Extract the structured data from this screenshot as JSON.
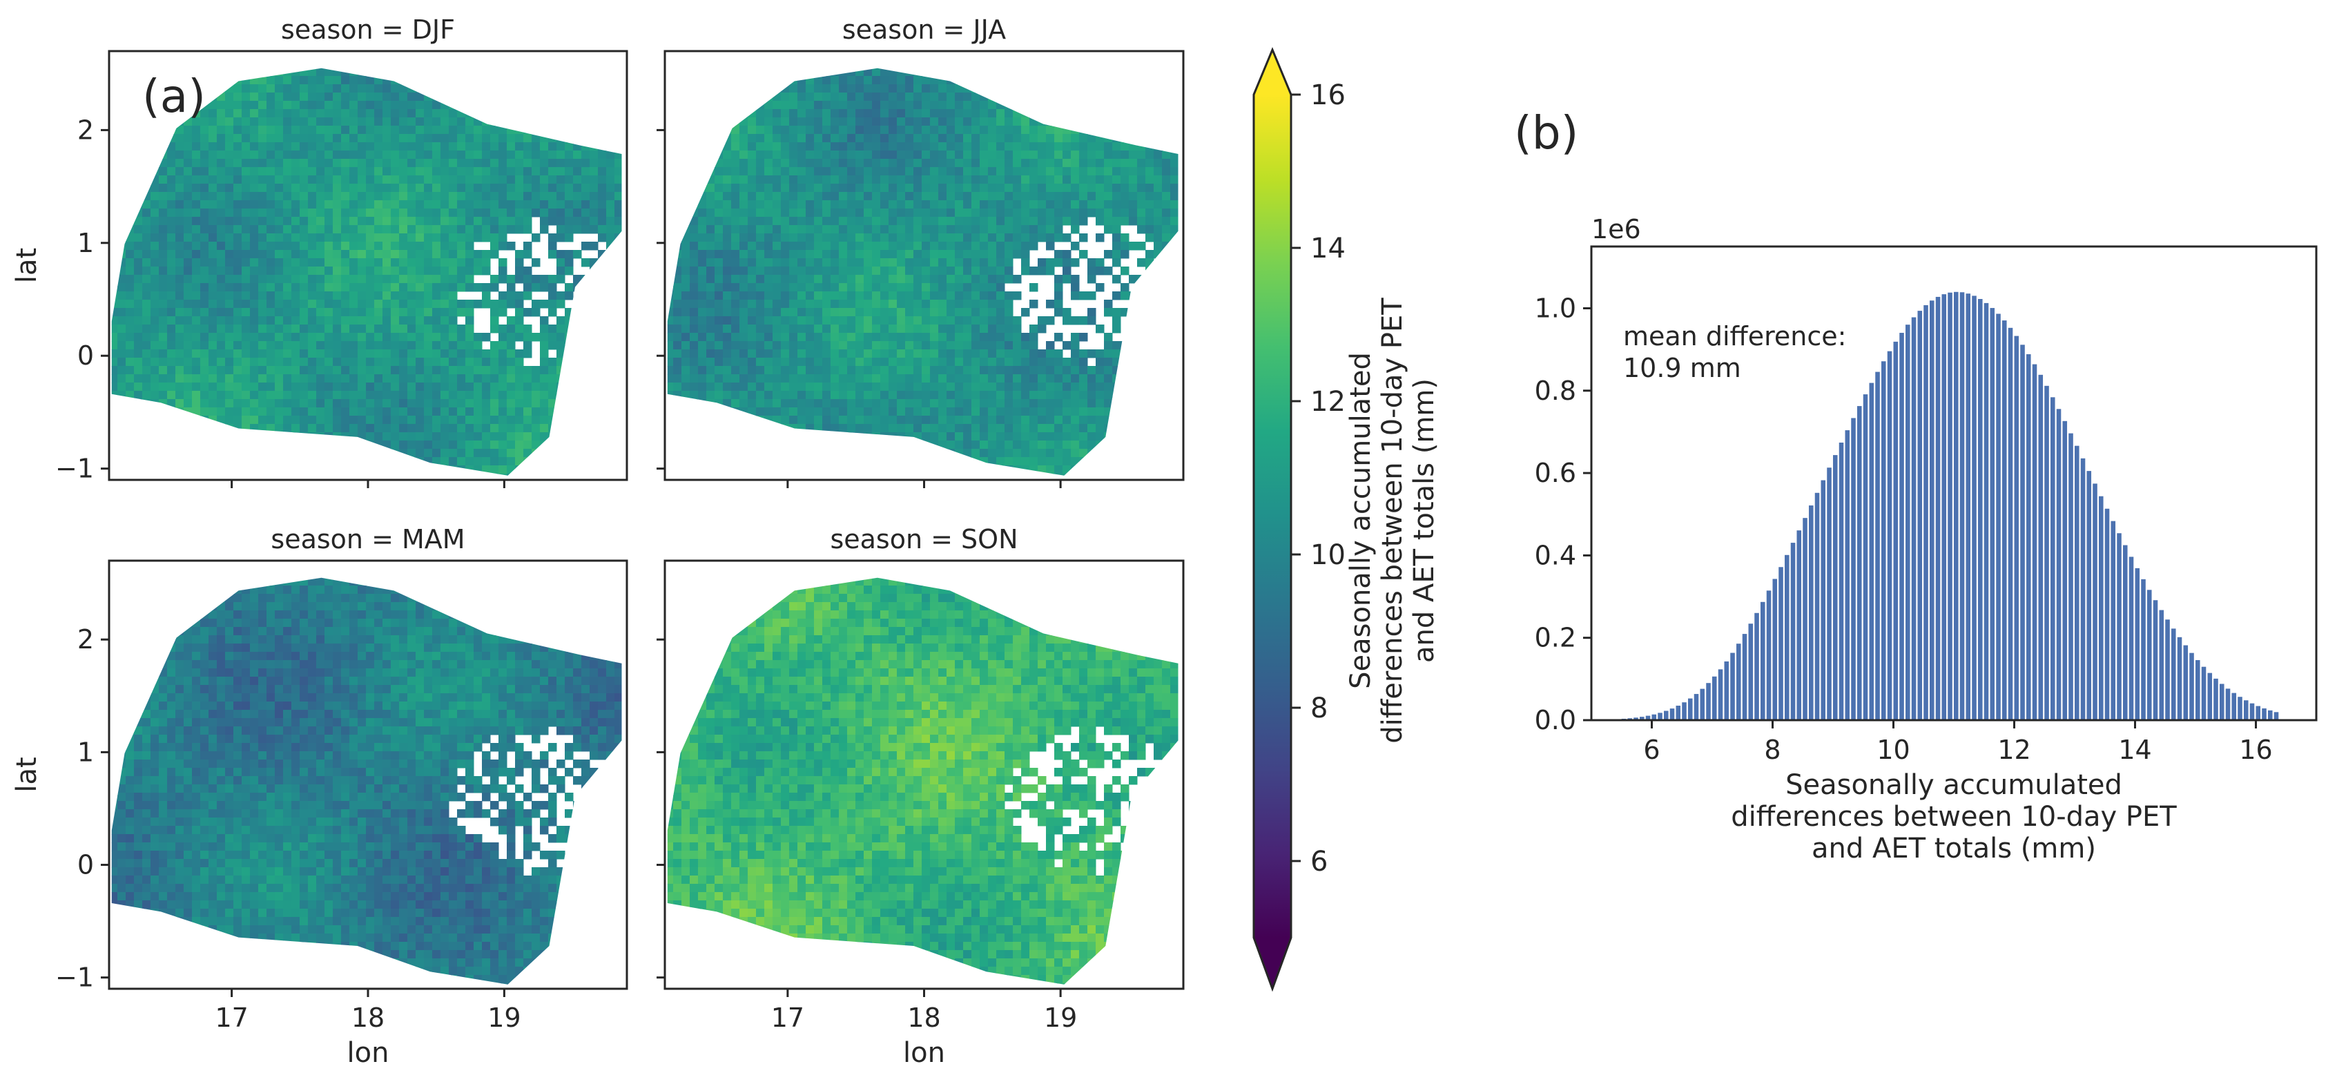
{
  "figure": {
    "panel_a_label": "(a)",
    "panel_b_label": "(b)"
  },
  "chart_data": [
    {
      "type": "heatmap",
      "panel": "a",
      "description_type": "faceted map (4 seasons)",
      "facets": [
        {
          "title": "season = DJF",
          "mean": 10.9
        },
        {
          "title": "season = JJA",
          "mean": 10.6
        },
        {
          "title": "season = MAM",
          "mean": 9.7
        },
        {
          "title": "season = SON",
          "mean": 12.4
        }
      ],
      "xlabel": "lon",
      "ylabel": "lat",
      "xlim": [
        16.1,
        19.9
      ],
      "ylim": [
        -1.1,
        2.7
      ],
      "xticks": [
        17,
        18,
        19
      ],
      "xtick_labels": [
        "17",
        "18",
        "19"
      ],
      "yticks": [
        -1,
        0,
        1,
        2
      ],
      "ytick_labels": [
        "−1",
        "0",
        "1",
        "2"
      ],
      "colorbar": {
        "label_lines": [
          "Seasonally accumulated",
          "differences between 10-day PET",
          "and AET totals (mm)"
        ],
        "vmin": 5,
        "vmax": 16,
        "ticks": [
          6,
          8,
          10,
          12,
          14,
          16
        ],
        "tick_labels": [
          "6",
          "8",
          "10",
          "12",
          "14",
          "16"
        ],
        "extend": "both",
        "colormap": "viridis",
        "colors": [
          "#440154",
          "#482475",
          "#414487",
          "#355f8d",
          "#2a788e",
          "#21918c",
          "#22a884",
          "#44bf70",
          "#7ad151",
          "#bddf26",
          "#fde725"
        ]
      }
    },
    {
      "type": "bar",
      "panel": "b",
      "description_type": "histogram",
      "annotation": "mean difference:\n10.9 mm",
      "annotation_lines": [
        "mean difference:",
        "10.9 mm"
      ],
      "xlabel_lines": [
        "Seasonally accumulated",
        "differences between 10-day PET",
        "and AET totals (mm)"
      ],
      "ylabel": "",
      "offset_text": "1e6",
      "xlim": [
        5.0,
        17.0
      ],
      "ylim": [
        0,
        1.15
      ],
      "xticks": [
        6,
        8,
        10,
        12,
        14,
        16
      ],
      "xtick_labels": [
        "6",
        "8",
        "10",
        "12",
        "14",
        "16"
      ],
      "yticks": [
        0.0,
        0.2,
        0.4,
        0.6,
        0.8,
        1.0
      ],
      "ytick_labels": [
        "0.0",
        "0.2",
        "0.4",
        "0.6",
        "0.8",
        "1.0"
      ],
      "bar_color": "#4c72b0",
      "bin_width": 0.1,
      "bin_start": 5.2,
      "counts": [
        0.0013,
        0.0018,
        0.0025,
        0.0034,
        0.0046,
        0.0062,
        0.0082,
        0.0107,
        0.0139,
        0.0178,
        0.0226,
        0.0283,
        0.0352,
        0.0433,
        0.0527,
        0.0636,
        0.0761,
        0.0902,
        0.106,
        0.1234,
        0.1426,
        0.1634,
        0.1857,
        0.2094,
        0.2343,
        0.2602,
        0.287,
        0.3146,
        0.3429,
        0.3717,
        0.401,
        0.4307,
        0.4607,
        0.4909,
        0.5213,
        0.5519,
        0.5825,
        0.6131,
        0.6436,
        0.6739,
        0.7039,
        0.7335,
        0.7626,
        0.7911,
        0.8188,
        0.8456,
        0.8713,
        0.8958,
        0.9189,
        0.9404,
        0.9602,
        0.9781,
        0.9939,
        1.0075,
        1.0188,
        1.0277,
        1.0341,
        1.0381,
        1.0397,
        1.0389,
        1.0357,
        1.0303,
        1.0226,
        1.0127,
        1.0007,
        0.9866,
        0.9705,
        0.9525,
        0.9328,
        0.9114,
        0.8885,
        0.8641,
        0.8385,
        0.8117,
        0.784,
        0.7555,
        0.7262,
        0.6964,
        0.6661,
        0.6356,
        0.605,
        0.5743,
        0.5437,
        0.5134,
        0.4834,
        0.4539,
        0.4249,
        0.3966,
        0.369,
        0.3422,
        0.3163,
        0.2913,
        0.2673,
        0.2443,
        0.2223,
        0.2015,
        0.1818,
        0.1632,
        0.1458,
        0.1296,
        0.1146,
        0.1008,
        0.0881,
        0.0765,
        0.066,
        0.0566,
        0.0482,
        0.0408,
        0.0343,
        0.0286,
        0.0237,
        0.0196
      ]
    }
  ]
}
